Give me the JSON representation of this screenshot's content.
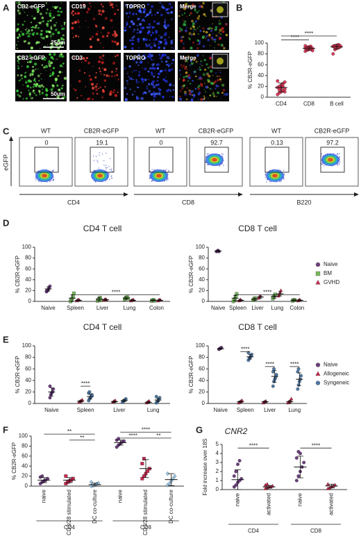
{
  "panel_labels": [
    "A",
    "B",
    "C",
    "D",
    "E",
    "F",
    "G"
  ],
  "micrographs": {
    "rows": [
      {
        "labels": [
          "CB2-eGFP",
          "CD19",
          "TOPRO",
          "Merge"
        ],
        "scale": "25um"
      },
      {
        "labels": [
          "CB2-eGFP",
          "CD3",
          "TOPRO",
          "Merge"
        ],
        "scale": "50um"
      }
    ]
  },
  "flow": {
    "y_label": "eGFP",
    "x_labels": [
      "CD4",
      "CD8",
      "B220"
    ],
    "plots": [
      {
        "title": "WT",
        "gate": 0
      },
      {
        "title": "CB2R-eGFP",
        "gate": 19.1
      },
      {
        "title": "WT",
        "gate": 0
      },
      {
        "title": "CB2R-eGFP",
        "gate": 92.7
      },
      {
        "title": "WT",
        "gate": 0.13
      },
      {
        "title": "CB2R-eGFP",
        "gate": 97.2
      }
    ]
  },
  "chart_data": [
    {
      "type": "dot",
      "ylabel": "% CB2R-eGFP",
      "ylim": [
        0,
        100
      ],
      "yticks": [
        0,
        20,
        40,
        60,
        80,
        100
      ],
      "categories": [
        "CD4",
        "CD8",
        "B cell"
      ],
      "series": [
        {
          "color": "#d42a4a",
          "marker": "circle",
          "values": [
            [
              5,
              8,
              10,
              12,
              15,
              18,
              20,
              22,
              25,
              28,
              30,
              14,
              17,
              20,
              10
            ],
            [
              85,
              87,
              88,
              89,
              90,
              91,
              92,
              93,
              94,
              86,
              95,
              90
            ],
            [
              80,
              88,
              90,
              92,
              93,
              94,
              95,
              96,
              97,
              95,
              94,
              93
            ]
          ],
          "mean": [
            18,
            90,
            93
          ],
          "sd": [
            8,
            3,
            4
          ]
        }
      ],
      "annotations": [
        {
          "text": "****"
        },
        {
          "text": "****"
        }
      ]
    },
    {
      "type": "dot",
      "title": "CD4 T cell",
      "ylabel": "% CB2R-eGFP",
      "ylim": [
        0,
        100
      ],
      "yticks": [
        0,
        20,
        40,
        60,
        80,
        100
      ],
      "categories": [
        "Naive",
        "Spleen",
        "Liver",
        "Lung",
        "Colon"
      ],
      "series": [
        {
          "color": "#5b2a6e",
          "marker": "circle",
          "values": [
            [
              18,
              20,
              22,
              25,
              28,
              19
            ],
            null,
            null,
            null,
            null
          ],
          "mean": [
            23,
            null,
            null,
            null,
            null
          ],
          "sd": [
            4,
            null,
            null,
            null,
            null
          ]
        },
        {
          "color": "#6ab04c",
          "marker": "square",
          "values": [
            null,
            [
              0,
              2,
              5,
              10,
              15
            ],
            [
              1,
              3,
              5,
              7,
              2
            ],
            [
              4,
              6,
              7,
              8,
              5
            ],
            [
              1,
              2,
              3,
              1
            ]
          ],
          "mean": [
            null,
            6,
            4,
            6,
            2
          ],
          "sd": [
            null,
            6,
            3,
            2,
            1
          ]
        },
        {
          "color": "#c0143c",
          "marker": "triangle",
          "values": [
            null,
            [
              1,
              2,
              3,
              2
            ],
            [
              2,
              3,
              4,
              3
            ],
            [
              1,
              2,
              2,
              3
            ],
            [
              1,
              2,
              3,
              2
            ]
          ],
          "mean": [
            null,
            2,
            3,
            2,
            2
          ],
          "sd": [
            null,
            1,
            1,
            1,
            1
          ]
        }
      ],
      "annotations": [
        {
          "text": "****"
        }
      ]
    },
    {
      "type": "dot",
      "title": "CD8 T cell",
      "ylabel": "% CB2R-eGFP",
      "ylim": [
        0,
        100
      ],
      "yticks": [
        0,
        20,
        40,
        60,
        80,
        100
      ],
      "categories": [
        "Naive",
        "Spleen",
        "Liver",
        "Lung",
        "Colon"
      ],
      "legend": "right",
      "series": [
        {
          "name": "Naive",
          "color": "#5b2a6e",
          "marker": "circle",
          "values": [
            [
              92,
              93,
              94,
              92
            ],
            null,
            null,
            null,
            null
          ],
          "mean": [
            93,
            null,
            null,
            null,
            null
          ],
          "sd": [
            1,
            null,
            null,
            null,
            null
          ]
        },
        {
          "name": "BM",
          "color": "#6ab04c",
          "marker": "square",
          "values": [
            null,
            [
              0,
              3,
              5,
              10,
              14
            ],
            [
              2,
              4,
              6,
              5
            ],
            [
              5,
              8,
              11,
              13
            ],
            [
              1,
              2,
              3,
              2
            ]
          ],
          "mean": [
            null,
            6,
            4,
            9,
            2
          ],
          "sd": [
            null,
            5,
            2,
            3,
            1
          ]
        },
        {
          "name": "GVHD",
          "color": "#c0143c",
          "marker": "triangle",
          "values": [
            null,
            [
              1,
              2,
              3
            ],
            [
              6,
              8,
              10
            ],
            [
              10,
              12,
              16,
              20
            ],
            [
              1,
              2,
              3
            ]
          ],
          "mean": [
            null,
            2,
            8,
            14,
            2
          ],
          "sd": [
            null,
            1,
            2,
            4,
            1
          ]
        }
      ],
      "annotations": [
        {
          "text": "****"
        }
      ]
    },
    {
      "type": "dot",
      "title": "CD4 T cell",
      "ylabel": "% CB2R-eGFP",
      "ylim": [
        0,
        100
      ],
      "yticks": [
        0,
        20,
        40,
        60,
        80,
        100
      ],
      "categories": [
        "Naive",
        "Spleen",
        "Liver",
        "Lung"
      ],
      "series": [
        {
          "color": "#5b2a6e",
          "marker": "circle",
          "values": [
            [
              10,
              15,
              18,
              20,
              25,
              30
            ],
            null,
            null,
            null
          ],
          "mean": [
            20,
            null,
            null,
            null
          ],
          "sd": [
            7,
            null,
            null,
            null
          ]
        },
        {
          "color": "#c0143c",
          "marker": "triangle",
          "values": [
            null,
            [
              2,
              3,
              4,
              5,
              6
            ],
            [
              2,
              3,
              4,
              5
            ],
            [
              1,
              2,
              3,
              4
            ]
          ],
          "mean": [
            null,
            4,
            3,
            2
          ],
          "sd": [
            null,
            1,
            1,
            1
          ]
        },
        {
          "color": "#3d6a9a",
          "marker": "circle",
          "values": [
            null,
            [
              5,
              8,
              10,
              12,
              15,
              18,
              20
            ],
            [
              2,
              4,
              5,
              6,
              8
            ],
            [
              1,
              3,
              5,
              7,
              10,
              12
            ]
          ],
          "mean": [
            null,
            12,
            5,
            6
          ],
          "sd": [
            null,
            4,
            2,
            3
          ]
        }
      ],
      "annotations": [
        {
          "text": "****"
        }
      ]
    },
    {
      "type": "dot",
      "title": "CD8 T cell",
      "ylabel": "% CB2R-eGFP",
      "ylim": [
        0,
        100
      ],
      "yticks": [
        0,
        20,
        40,
        60,
        80,
        100
      ],
      "categories": [
        "Naive",
        "Spleen",
        "Liver",
        "Lung"
      ],
      "legend": "right",
      "series": [
        {
          "name": "Naive",
          "color": "#5b2a6e",
          "marker": "circle",
          "values": [
            [
              94,
              95,
              96,
              97
            ],
            null,
            null,
            null
          ],
          "mean": [
            95,
            null,
            null,
            null
          ],
          "sd": [
            1,
            null,
            null,
            null
          ]
        },
        {
          "name": "Allogeneic",
          "color": "#c0143c",
          "marker": "triangle",
          "values": [
            null,
            [
              1,
              2,
              3,
              4,
              5
            ],
            [
              1,
              2,
              3,
              4
            ],
            [
              1,
              2,
              3,
              5,
              8
            ]
          ],
          "mean": [
            null,
            3,
            3,
            3
          ],
          "sd": [
            null,
            1,
            1,
            2
          ]
        },
        {
          "name": "Syngeneic",
          "color": "#3d6a9a",
          "marker": "circle",
          "values": [
            null,
            [
              75,
              78,
              80,
              82,
              85,
              88
            ],
            [
              30,
              38,
              42,
              45,
              50,
              55,
              60
            ],
            [
              25,
              32,
              38,
              42,
              48,
              55,
              60
            ]
          ],
          "mean": [
            null,
            81,
            47,
            42
          ],
          "sd": [
            null,
            4,
            10,
            11
          ]
        }
      ],
      "annotations": [
        {
          "text": "****"
        },
        {
          "text": "****"
        },
        {
          "text": "****"
        }
      ]
    },
    {
      "type": "dot",
      "ylabel": "% CB2R-eGFP",
      "ylim": [
        0,
        100
      ],
      "yticks": [
        0,
        20,
        40,
        60,
        80,
        100
      ],
      "categories": [
        "naive",
        "CD3/28 stimulated",
        "DC co-culture",
        "naive",
        "CD3/28 stimulated",
        "DC co-culture"
      ],
      "group_labels": [
        "CD4",
        "CD8"
      ],
      "series": [
        {
          "color": "#5b2a6e",
          "marker": "circle",
          "values": [
            [
              5,
              8,
              10,
              12,
              15,
              18,
              20
            ],
            null,
            null,
            [
              78,
              82,
              85,
              88,
              90,
              92,
              95
            ],
            null,
            null
          ],
          "mean": [
            12,
            null,
            null,
            87,
            null,
            null
          ],
          "sd": [
            5,
            null,
            null,
            5,
            null,
            null
          ]
        },
        {
          "color": "#c0143c",
          "marker": "square",
          "values": [
            null,
            [
              5,
              8,
              10,
              12,
              15,
              20
            ],
            null,
            null,
            [
              15,
              20,
              25,
              30,
              35,
              45,
              55
            ],
            null
          ],
          "mean": [
            null,
            12,
            null,
            null,
            35,
            null
          ],
          "sd": [
            null,
            5,
            null,
            null,
            18,
            null
          ]
        },
        {
          "color": "#8ec3e6",
          "marker": "diamond",
          "values": [
            null,
            null,
            [
              0,
              1,
              2,
              4,
              6,
              8
            ],
            null,
            null,
            [
              2,
              5,
              10,
              15,
              20,
              25
            ]
          ],
          "mean": [
            null,
            null,
            3,
            null,
            null,
            13
          ],
          "sd": [
            null,
            null,
            3,
            null,
            null,
            12
          ]
        }
      ],
      "annotations": [
        {
          "text": "**"
        },
        {
          "text": "**"
        },
        {
          "text": "****"
        },
        {
          "text": "****"
        },
        {
          "text": "**"
        }
      ]
    },
    {
      "type": "dot",
      "title": "CNR2",
      "title_italic": true,
      "ylabel": "Fold increase over 18S",
      "ylim": [
        0,
        5
      ],
      "yticks": [
        0,
        1,
        2,
        3,
        4,
        5
      ],
      "categories": [
        "naive",
        "activated",
        "naive",
        "activated"
      ],
      "group_labels": [
        "CD4",
        "CD8"
      ],
      "series": [
        {
          "color": "#5b2a6e",
          "marker": "circle",
          "values": [
            [
              0.3,
              0.5,
              0.8,
              1.0,
              1.2,
              1.5,
              2.0,
              2.8,
              3.2
            ],
            null,
            [
              1.0,
              1.5,
              2.0,
              2.5,
              3.0,
              3.5,
              4.2,
              4.0
            ],
            null
          ],
          "mean": [
            1.1,
            null,
            2.5,
            null
          ],
          "sd": [
            1.1,
            null,
            1.2,
            null
          ]
        },
        {
          "color": "#c0143c",
          "marker": "triangle",
          "values": [
            null,
            [
              0.1,
              0.2,
              0.3,
              0.3,
              0.4,
              0.5,
              0.6
            ],
            null,
            [
              0.1,
              0.2,
              0.3,
              0.4,
              0.5,
              0.6
            ]
          ],
          "mean": [
            null,
            0.3,
            null,
            0.4
          ],
          "sd": [
            null,
            0.15,
            null,
            0.2
          ]
        }
      ],
      "annotations": [
        {
          "text": "****"
        },
        {
          "text": "****"
        }
      ]
    }
  ]
}
